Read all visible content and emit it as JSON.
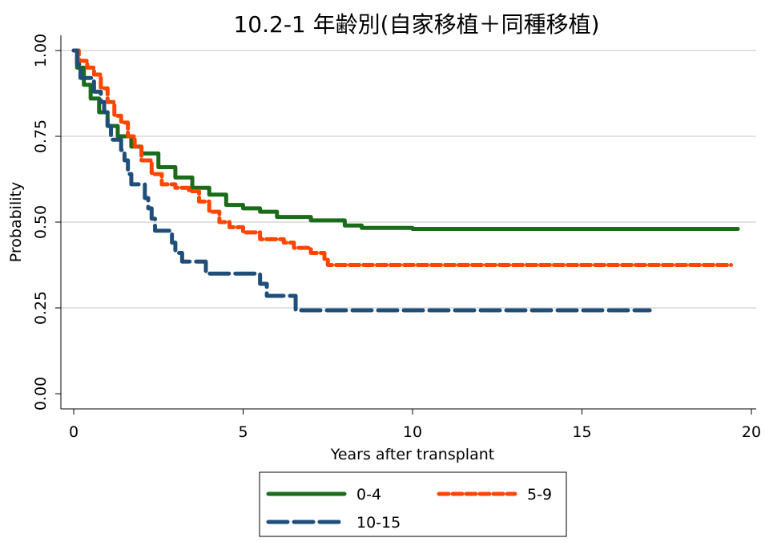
{
  "chart_data": {
    "type": "line",
    "title": "10.2-1 年齢別(自家移植＋同種移植)",
    "xlabel": "Years after transplant",
    "ylabel": "Probability",
    "xlim": [
      0,
      20
    ],
    "ylim": [
      0,
      1
    ],
    "x_ticks": [
      "0",
      "5",
      "10",
      "15",
      "20"
    ],
    "y_ticks": [
      "0.00",
      "0.25",
      "0.50",
      "0.75",
      "1.00"
    ],
    "grid": "horizontal",
    "legend_position": "bottom",
    "step": true,
    "series": [
      {
        "name": "0-4",
        "color": "#1a6b1a",
        "dash": "solid",
        "points": [
          [
            0,
            1.0
          ],
          [
            0.1,
            0.95
          ],
          [
            0.3,
            0.9
          ],
          [
            0.5,
            0.86
          ],
          [
            0.75,
            0.82
          ],
          [
            1.0,
            0.78
          ],
          [
            1.3,
            0.75
          ],
          [
            1.7,
            0.72
          ],
          [
            2.0,
            0.7
          ],
          [
            2.5,
            0.66
          ],
          [
            3.0,
            0.63
          ],
          [
            3.5,
            0.6
          ],
          [
            4.0,
            0.58
          ],
          [
            4.5,
            0.55
          ],
          [
            5.0,
            0.54
          ],
          [
            5.5,
            0.53
          ],
          [
            6.0,
            0.515
          ],
          [
            7.0,
            0.505
          ],
          [
            8.0,
            0.49
          ],
          [
            8.5,
            0.483
          ],
          [
            10.0,
            0.48
          ],
          [
            19.6,
            0.48
          ]
        ]
      },
      {
        "name": "5-9",
        "color": "#ff4500",
        "dash": "dashed",
        "points": [
          [
            0,
            1.0
          ],
          [
            0.15,
            0.97
          ],
          [
            0.4,
            0.95
          ],
          [
            0.6,
            0.93
          ],
          [
            0.8,
            0.89
          ],
          [
            1.0,
            0.85
          ],
          [
            1.2,
            0.81
          ],
          [
            1.4,
            0.79
          ],
          [
            1.6,
            0.75
          ],
          [
            1.8,
            0.72
          ],
          [
            2.0,
            0.68
          ],
          [
            2.3,
            0.64
          ],
          [
            2.6,
            0.61
          ],
          [
            3.0,
            0.6
          ],
          [
            3.4,
            0.59
          ],
          [
            3.7,
            0.56
          ],
          [
            4.0,
            0.53
          ],
          [
            4.3,
            0.5
          ],
          [
            4.6,
            0.485
          ],
          [
            5.0,
            0.47
          ],
          [
            5.5,
            0.45
          ],
          [
            6.2,
            0.44
          ],
          [
            6.5,
            0.425
          ],
          [
            7.0,
            0.41
          ],
          [
            7.4,
            0.39
          ],
          [
            7.5,
            0.375
          ],
          [
            19.4,
            0.375
          ]
        ]
      },
      {
        "name": "10-15",
        "color": "#1f4e79",
        "dash": "long-dash",
        "points": [
          [
            0,
            1.0
          ],
          [
            0.1,
            0.96
          ],
          [
            0.2,
            0.92
          ],
          [
            0.5,
            0.92
          ],
          [
            0.6,
            0.88
          ],
          [
            0.8,
            0.85
          ],
          [
            0.9,
            0.82
          ],
          [
            1.0,
            0.78
          ],
          [
            1.1,
            0.74
          ],
          [
            1.3,
            0.74
          ],
          [
            1.4,
            0.71
          ],
          [
            1.5,
            0.68
          ],
          [
            1.6,
            0.64
          ],
          [
            1.7,
            0.61
          ],
          [
            2.0,
            0.61
          ],
          [
            2.1,
            0.57
          ],
          [
            2.2,
            0.54
          ],
          [
            2.3,
            0.51
          ],
          [
            2.4,
            0.475
          ],
          [
            2.8,
            0.475
          ],
          [
            2.9,
            0.44
          ],
          [
            3.0,
            0.41
          ],
          [
            3.2,
            0.385
          ],
          [
            3.8,
            0.385
          ],
          [
            3.9,
            0.35
          ],
          [
            5.4,
            0.35
          ],
          [
            5.5,
            0.32
          ],
          [
            5.7,
            0.285
          ],
          [
            6.5,
            0.285
          ],
          [
            6.55,
            0.243
          ],
          [
            17.0,
            0.243
          ]
        ]
      }
    ]
  }
}
